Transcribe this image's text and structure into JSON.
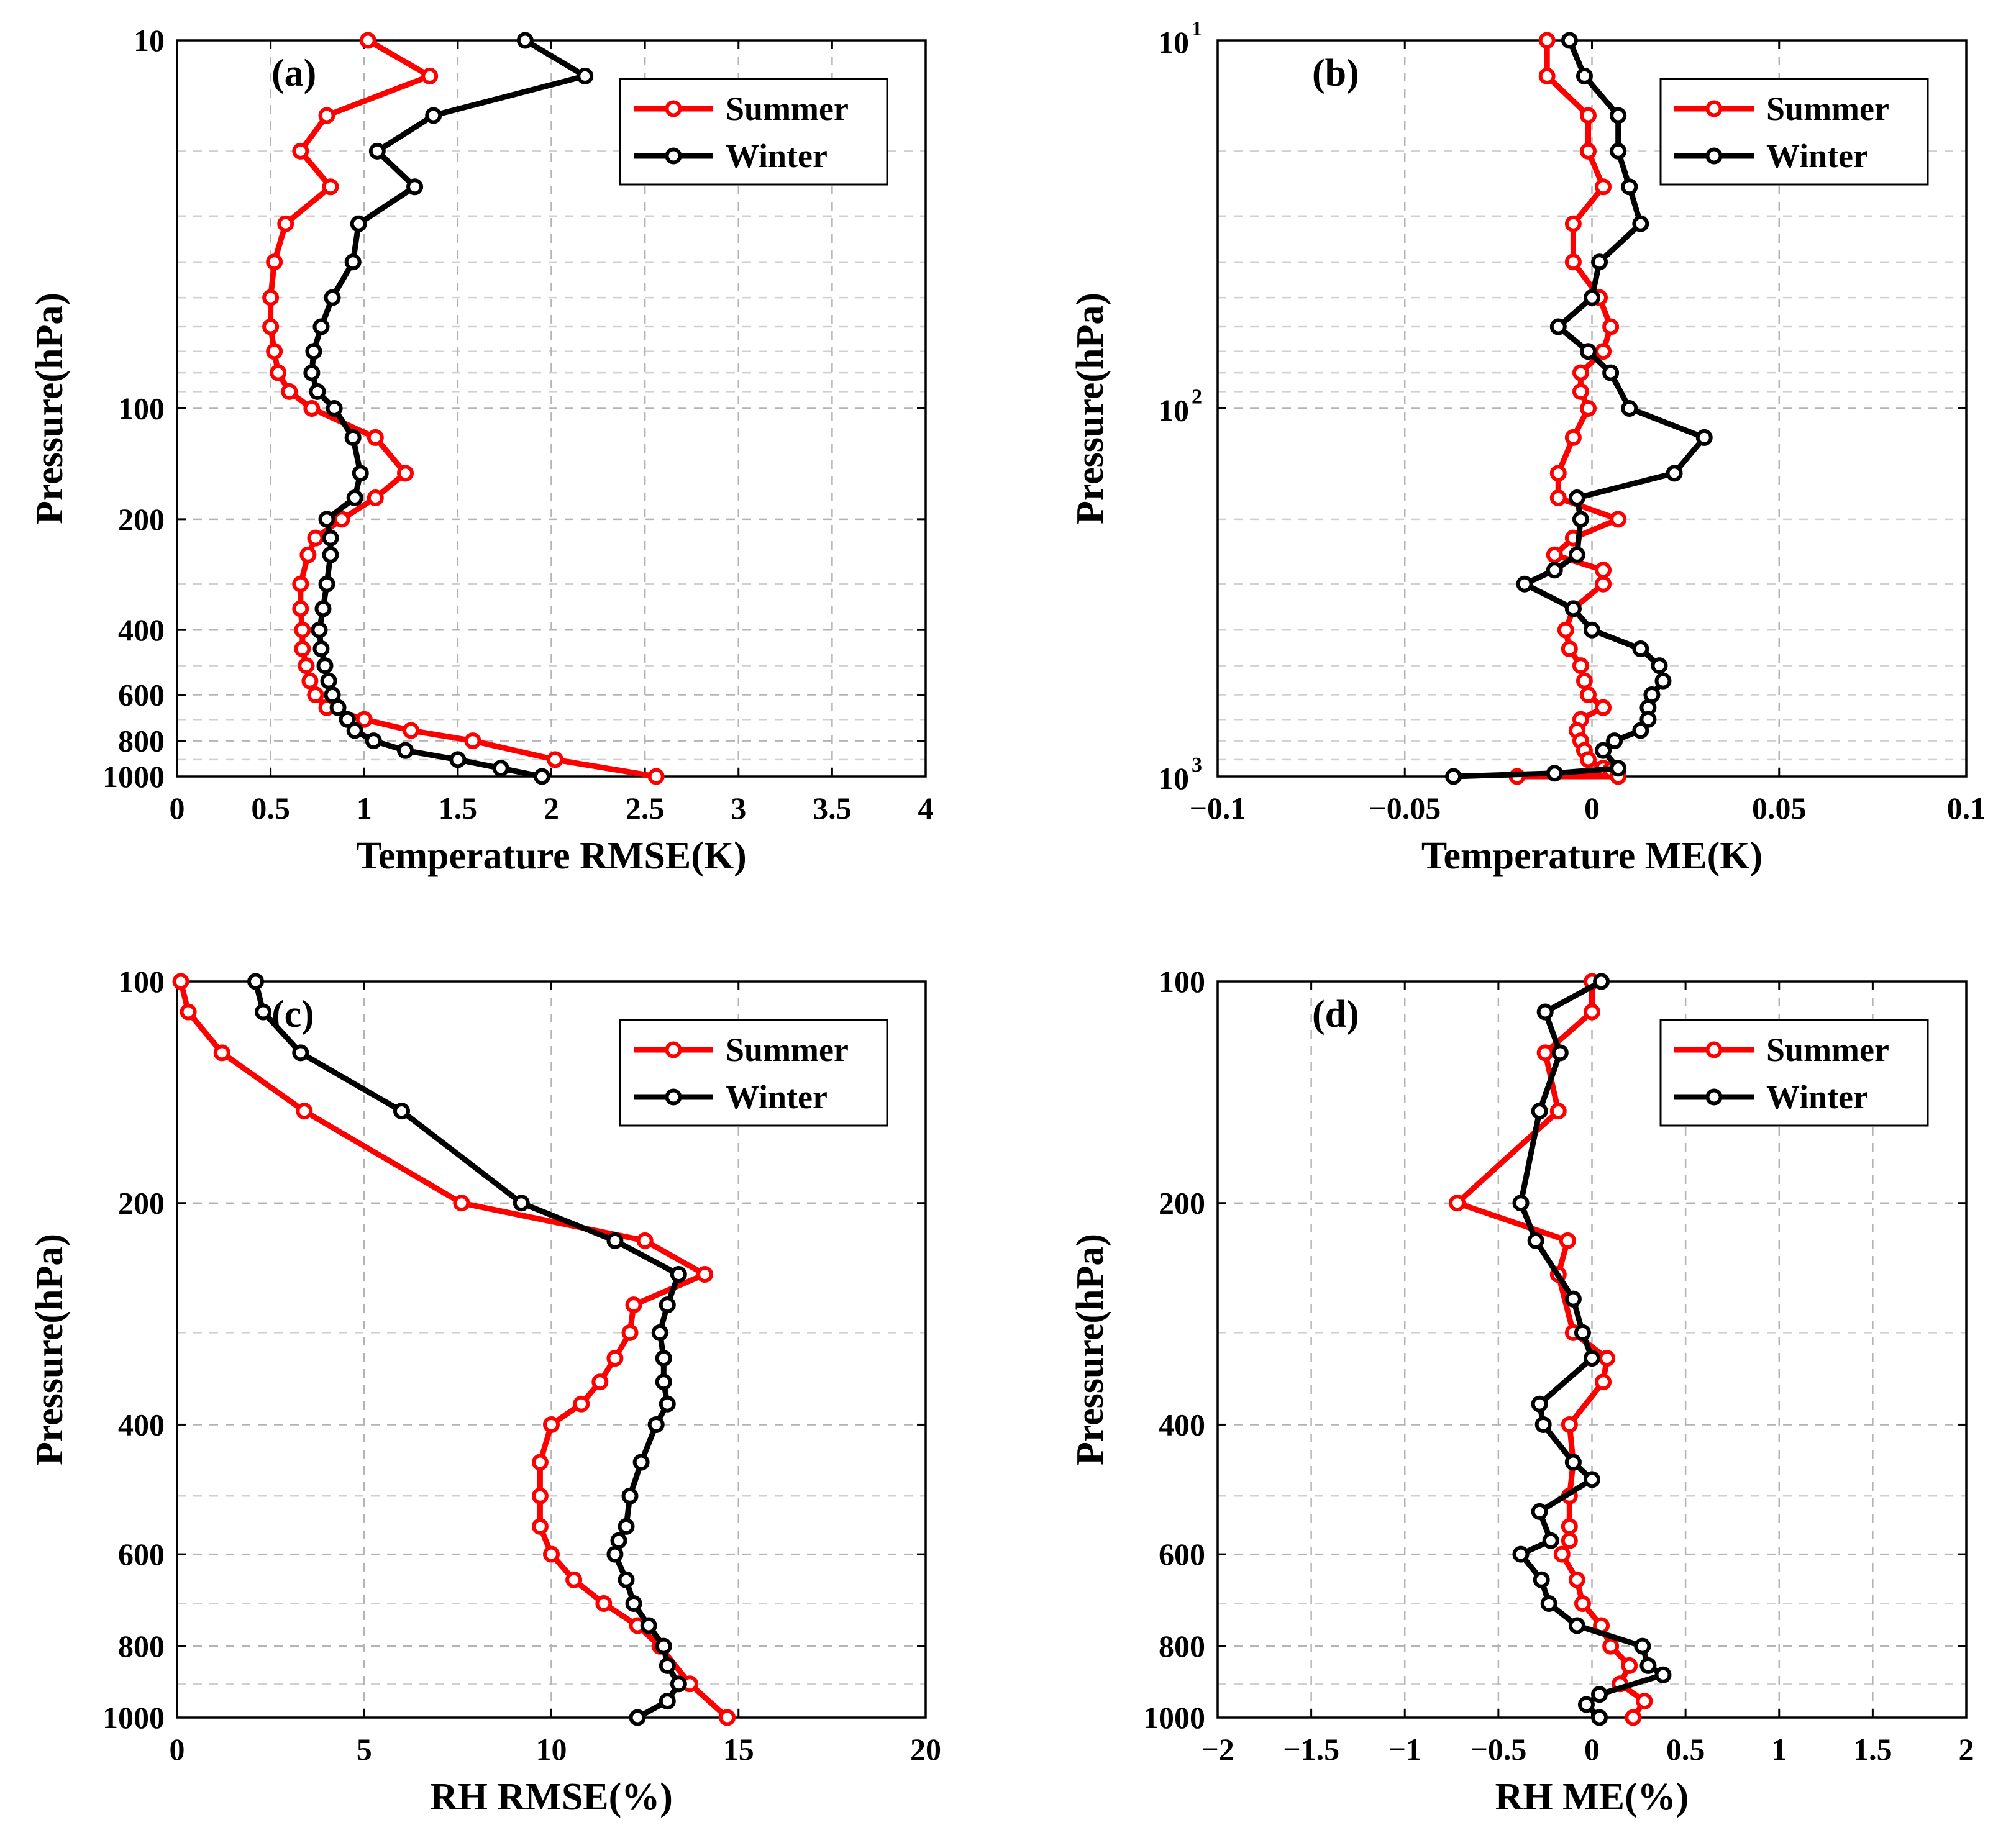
{
  "colors": {
    "summer": "#ff0000",
    "winter": "#000000",
    "grid": "#b4b4b4"
  },
  "chart_data": [
    {
      "id": "a",
      "type": "line",
      "panel_label": "(a)",
      "xlabel": "Temperature RMSE(K)",
      "ylabel": "Pressure(hPa)",
      "xlim": [
        0,
        4
      ],
      "ylim": [
        10,
        1000
      ],
      "yscale": "log",
      "xticks": [
        0,
        0.5,
        1,
        1.5,
        2,
        2.5,
        3,
        3.5,
        4
      ],
      "xtick_labels": [
        "0",
        "0.5",
        "1",
        "1.5",
        "2",
        "2.5",
        "3",
        "3.5",
        "4"
      ],
      "yticks": [
        10,
        100,
        200,
        400,
        600,
        800,
        1000
      ],
      "ytick_labels": [
        "10",
        "100",
        "200",
        "400",
        "600",
        "800",
        "1000"
      ],
      "legend": {
        "location": "top-right",
        "entries": [
          "Summer",
          "Winter"
        ]
      },
      "series": [
        {
          "name": "Summer",
          "x": [
            1.02,
            1.35,
            0.8,
            0.66,
            0.82,
            0.58,
            0.52,
            0.5,
            0.5,
            0.52,
            0.54,
            0.6,
            0.72,
            1.06,
            1.22,
            1.06,
            0.88,
            0.74,
            0.7,
            0.66,
            0.66,
            0.67,
            0.67,
            0.69,
            0.71,
            0.74,
            0.8,
            1.0,
            1.25,
            1.58,
            2.02,
            2.56
          ],
          "y": [
            10,
            12.5,
            16,
            20,
            25,
            31.5,
            40,
            50,
            60,
            70,
            80,
            90,
            100,
            120,
            150,
            175,
            200,
            225,
            250,
            300,
            350,
            400,
            450,
            500,
            550,
            600,
            650,
            700,
            750,
            800,
            900,
            1000
          ]
        },
        {
          "name": "Winter",
          "x": [
            1.86,
            2.18,
            1.37,
            1.07,
            1.27,
            0.97,
            0.94,
            0.83,
            0.77,
            0.73,
            0.72,
            0.75,
            0.84,
            0.94,
            0.98,
            0.95,
            0.8,
            0.82,
            0.82,
            0.8,
            0.78,
            0.76,
            0.77,
            0.79,
            0.81,
            0.83,
            0.86,
            0.91,
            0.95,
            1.05,
            1.22,
            1.5,
            1.73,
            1.95
          ],
          "y": [
            10,
            12.5,
            16,
            20,
            25,
            31.5,
            40,
            50,
            60,
            70,
            80,
            90,
            100,
            120,
            150,
            175,
            200,
            225,
            250,
            300,
            350,
            400,
            450,
            500,
            550,
            600,
            650,
            700,
            750,
            800,
            850,
            900,
            950,
            1000
          ]
        }
      ]
    },
    {
      "id": "b",
      "type": "line",
      "panel_label": "(b)",
      "xlabel": "Temperature ME(K)",
      "ylabel": "Pressure(hPa)",
      "xlim": [
        -0.1,
        0.1
      ],
      "ylim": [
        10,
        1000
      ],
      "yscale": "log",
      "xticks": [
        -0.1,
        -0.05,
        0,
        0.05,
        0.1
      ],
      "xtick_labels": [
        "−0.1",
        "−0.05",
        "0",
        "0.05",
        "0.1"
      ],
      "yticks": [
        10,
        100,
        1000
      ],
      "ytick_labels": [
        {
          "base": "10",
          "exp": "1"
        },
        {
          "base": "10",
          "exp": "2"
        },
        {
          "base": "10",
          "exp": "3"
        }
      ],
      "legend": {
        "location": "top-right",
        "entries": [
          "Summer",
          "Winter"
        ]
      },
      "series": [
        {
          "name": "Summer",
          "x": [
            -0.012,
            -0.012,
            -0.001,
            -0.001,
            0.003,
            -0.005,
            -0.005,
            0.002,
            0.005,
            0.003,
            -0.003,
            -0.003,
            -0.001,
            -0.005,
            -0.009,
            -0.009,
            0.007,
            -0.005,
            -0.01,
            0.003,
            0.003,
            -0.005,
            -0.007,
            -0.006,
            -0.003,
            -0.002,
            -0.001,
            0.003,
            -0.003,
            -0.004,
            -0.003,
            -0.002,
            -0.001,
            0.003,
            0.005,
            0.007,
            -0.02,
            0.007
          ],
          "y": [
            10,
            12.5,
            16,
            20,
            25,
            31.5,
            40,
            50,
            60,
            70,
            80,
            90,
            100,
            120,
            150,
            175,
            200,
            225,
            250,
            275,
            300,
            350,
            400,
            450,
            500,
            550,
            600,
            650,
            700,
            750,
            800,
            850,
            900,
            950,
            960,
            970,
            1000,
            1000
          ]
        },
        {
          "name": "Winter",
          "x": [
            -0.006,
            -0.002,
            0.007,
            0.007,
            0.01,
            0.013,
            0.002,
            0,
            -0.009,
            -0.001,
            0.005,
            0.01,
            0.03,
            0.022,
            -0.004,
            -0.003,
            -0.004,
            -0.01,
            -0.018,
            -0.005,
            0,
            0.013,
            0.018,
            0.019,
            0.016,
            0.015,
            0.015,
            0.013,
            0.006,
            0.003,
            0.007,
            -0.01,
            -0.037
          ],
          "y": [
            10,
            12.5,
            16,
            20,
            25,
            31.5,
            40,
            50,
            60,
            70,
            80,
            100,
            120,
            150,
            175,
            200,
            250,
            275,
            300,
            350,
            400,
            450,
            500,
            550,
            600,
            650,
            700,
            750,
            800,
            850,
            950,
            980,
            1000
          ]
        }
      ]
    },
    {
      "id": "c",
      "type": "line",
      "panel_label": "(c)",
      "xlabel": "RH RMSE(%)",
      "ylabel": "Pressure(hPa)",
      "xlim": [
        0,
        20
      ],
      "ylim": [
        100,
        1000
      ],
      "yscale": "log",
      "xticks": [
        0,
        5,
        10,
        15,
        20
      ],
      "xtick_labels": [
        "0",
        "5",
        "10",
        "15",
        "20"
      ],
      "yticks": [
        100,
        200,
        400,
        600,
        800,
        1000
      ],
      "ytick_labels": [
        "100",
        "200",
        "400",
        "600",
        "800",
        "1000"
      ],
      "legend": {
        "location": "top-right",
        "entries": [
          "Summer",
          "Winter"
        ]
      },
      "series": [
        {
          "name": "Summer",
          "x": [
            0.1,
            0.3,
            1.2,
            3.4,
            7.6,
            12.5,
            14.1,
            12.2,
            12.1,
            11.7,
            11.3,
            10.8,
            10.0,
            9.7,
            9.7,
            9.7,
            10.0,
            10.6,
            11.4,
            12.3,
            12.9,
            13.7,
            14.7
          ],
          "y": [
            100,
            110,
            125,
            150,
            200,
            225,
            250,
            275,
            300,
            325,
            350,
            375,
            400,
            450,
            500,
            550,
            600,
            650,
            700,
            750,
            800,
            900,
            1000
          ]
        },
        {
          "name": "Winter",
          "x": [
            2.1,
            2.3,
            3.3,
            6.0,
            9.2,
            11.7,
            13.4,
            13.1,
            12.9,
            13.0,
            13.0,
            13.1,
            12.8,
            12.4,
            12.1,
            12.0,
            11.8,
            11.7,
            12.0,
            12.2,
            12.6,
            13.0,
            13.1,
            13.4,
            13.1,
            12.3
          ],
          "y": [
            100,
            110,
            125,
            150,
            200,
            225,
            250,
            275,
            300,
            325,
            350,
            375,
            400,
            450,
            500,
            550,
            575,
            600,
            650,
            700,
            750,
            800,
            850,
            900,
            950,
            1000
          ]
        }
      ]
    },
    {
      "id": "d",
      "type": "line",
      "panel_label": "(d)",
      "xlabel": "RH ME(%)",
      "ylabel": "Pressure(hPa)",
      "xlim": [
        -2,
        2
      ],
      "ylim": [
        100,
        1000
      ],
      "yscale": "log",
      "xticks": [
        -2,
        -1.5,
        -1,
        -0.5,
        0,
        0.5,
        1,
        1.5,
        2
      ],
      "xtick_labels": [
        "−2",
        "−1.5",
        "−1",
        "−0.5",
        "0",
        "0.5",
        "1",
        "1.5",
        "2"
      ],
      "yticks": [
        100,
        200,
        400,
        600,
        800,
        1000
      ],
      "ytick_labels": [
        "100",
        "200",
        "400",
        "600",
        "800",
        "1000"
      ],
      "legend": {
        "location": "top-right",
        "entries": [
          "Summer",
          "Winter"
        ]
      },
      "series": [
        {
          "name": "Summer",
          "x": [
            0,
            0,
            -0.25,
            -0.18,
            -0.72,
            -0.13,
            -0.18,
            -0.1,
            0.08,
            0.06,
            -0.12,
            -0.1,
            -0.12,
            -0.12,
            -0.12,
            -0.16,
            -0.08,
            -0.05,
            0.05,
            0.1,
            0.2,
            0.15,
            0.28,
            0.22
          ],
          "y": [
            100,
            110,
            125,
            150,
            200,
            225,
            250,
            300,
            325,
            350,
            400,
            450,
            500,
            550,
            575,
            600,
            650,
            700,
            750,
            800,
            850,
            900,
            950,
            1000
          ]
        },
        {
          "name": "Winter",
          "x": [
            0.05,
            -0.25,
            -0.17,
            -0.28,
            -0.38,
            -0.3,
            -0.1,
            -0.05,
            0,
            -0.28,
            -0.26,
            -0.1,
            0,
            -0.28,
            -0.22,
            -0.38,
            -0.27,
            -0.23,
            -0.08,
            0.27,
            0.3,
            0.38,
            0.04,
            -0.03,
            0.04
          ],
          "y": [
            100,
            110,
            125,
            150,
            200,
            225,
            270,
            300,
            325,
            375,
            400,
            450,
            475,
            525,
            575,
            600,
            650,
            700,
            750,
            800,
            850,
            875,
            930,
            960,
            1000
          ]
        }
      ]
    }
  ]
}
